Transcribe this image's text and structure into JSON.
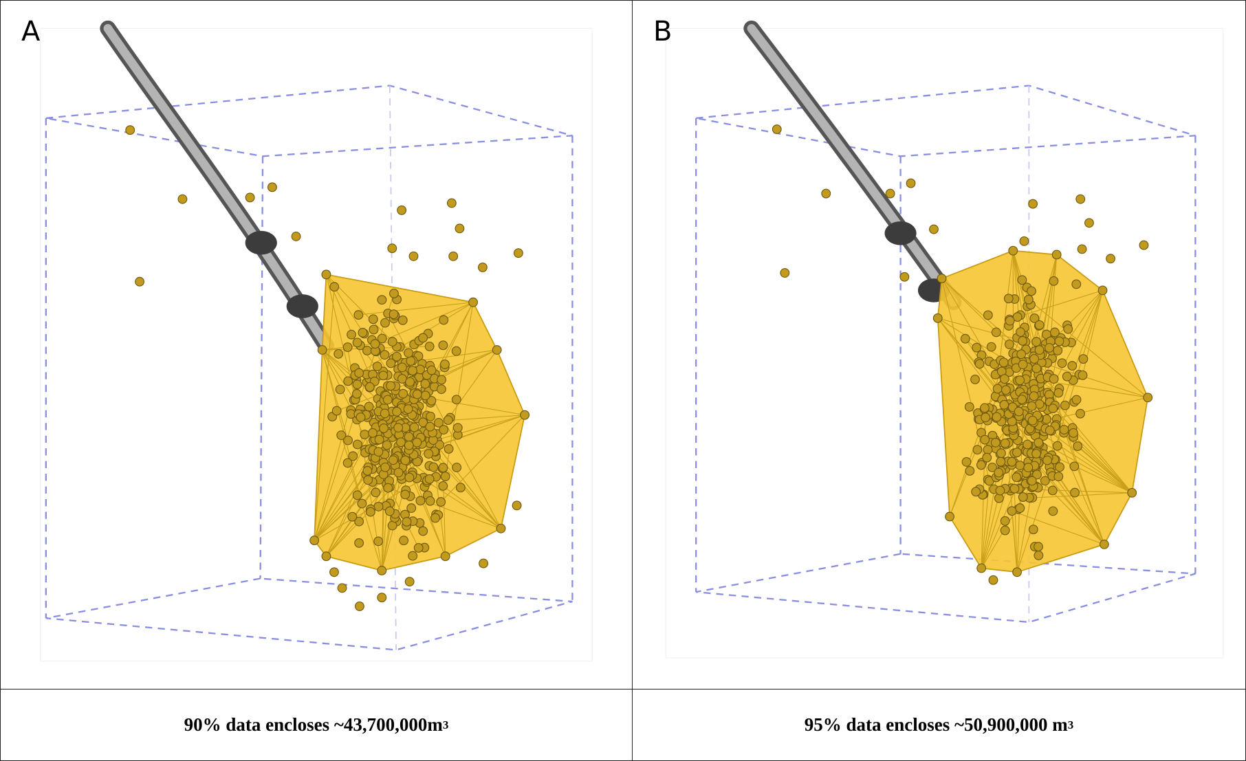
{
  "panels": [
    {
      "label": "A",
      "caption": "90% data encloses ~43,700,000m",
      "caption_sup": "3"
    },
    {
      "label": "B",
      "caption": "95% data encloses ~50,900,000 m",
      "caption_sup": "3"
    }
  ]
}
